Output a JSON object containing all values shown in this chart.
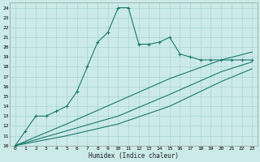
{
  "xlabel": "Humidex (Indice chaleur)",
  "bg_color": "#cceaea",
  "grid_color": "#aad4d4",
  "line_color": "#1a7a6a",
  "xlim": [
    -0.5,
    23.5
  ],
  "ylim": [
    10,
    24.5
  ],
  "xticks": [
    0,
    1,
    2,
    3,
    4,
    5,
    6,
    7,
    8,
    9,
    10,
    11,
    12,
    13,
    14,
    15,
    16,
    17,
    18,
    19,
    20,
    21,
    22,
    23
  ],
  "yticks": [
    10,
    11,
    12,
    13,
    14,
    15,
    16,
    17,
    18,
    19,
    20,
    21,
    22,
    23,
    24
  ],
  "line1_x": [
    0,
    1,
    2,
    3,
    4,
    5,
    6,
    7,
    8,
    9,
    10,
    11,
    12,
    13,
    14,
    15,
    16,
    17,
    18,
    19,
    20,
    21,
    22,
    23
  ],
  "line1_y": [
    10,
    11.5,
    13,
    13,
    13.5,
    14,
    15.5,
    18,
    20.5,
    21.5,
    24,
    24,
    20.3,
    20.3,
    20.5,
    21,
    19.3,
    19,
    18.7,
    18.7,
    18.7,
    18.7,
    18.7,
    18.7
  ],
  "line2_x": [
    0,
    5,
    10,
    15,
    20,
    23
  ],
  "line2_y": [
    10,
    12.2,
    14.5,
    16.8,
    18.7,
    19.5
  ],
  "line3_x": [
    0,
    5,
    10,
    15,
    20,
    23
  ],
  "line3_y": [
    10,
    11.5,
    13.0,
    15.2,
    17.5,
    18.5
  ],
  "line4_x": [
    0,
    5,
    10,
    15,
    20,
    23
  ],
  "line4_y": [
    10,
    11.0,
    12.2,
    14.0,
    16.5,
    17.8
  ]
}
